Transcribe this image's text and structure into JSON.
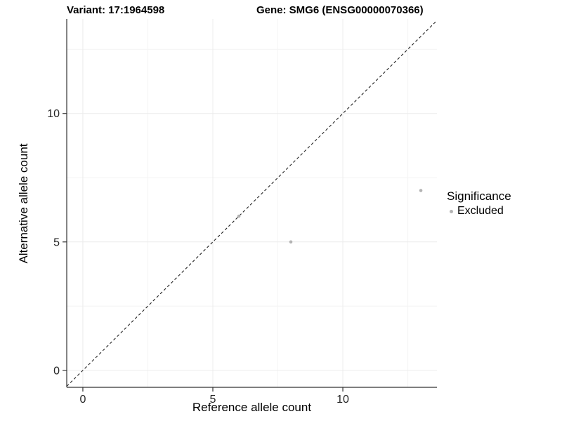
{
  "colors": {
    "background": "#ffffff",
    "grid_major": "#ececec",
    "grid_minor": "#f4f4f4",
    "axis_line": "#333333",
    "tick_text": "#262626",
    "identity_line": "#222222",
    "excluded_point": "#b3b3b3"
  },
  "chart_data": {
    "type": "scatter",
    "titles": {
      "variant": "Variant: 17:1964598",
      "gene": "Gene: SMG6 (ENSG00000070366)"
    },
    "xlabel": "Reference allele count",
    "ylabel": "Alternative allele count",
    "xlim": [
      -0.62,
      13.62
    ],
    "ylim": [
      -0.66,
      13.68
    ],
    "x_major_ticks": [
      0,
      5,
      10
    ],
    "y_major_ticks": [
      0,
      5,
      10
    ],
    "x_minor_ticks": [
      2.5,
      7.5,
      12.5
    ],
    "y_minor_ticks": [
      2.5,
      7.5,
      12.5
    ],
    "grid": "on",
    "identity_line": {
      "style": "dashed",
      "from": -0.62,
      "to": 13.62
    },
    "series": [
      {
        "name": "Excluded",
        "color": "#b3b3b3",
        "point_radius": 2.3,
        "points": [
          {
            "x": 6,
            "y": 6
          },
          {
            "x": 8,
            "y": 5
          },
          {
            "x": 13,
            "y": 7
          }
        ]
      }
    ],
    "legend": {
      "position": "right",
      "title": "Significance",
      "items": [
        {
          "label": "Excluded",
          "color": "#b3b3b3"
        }
      ]
    }
  }
}
